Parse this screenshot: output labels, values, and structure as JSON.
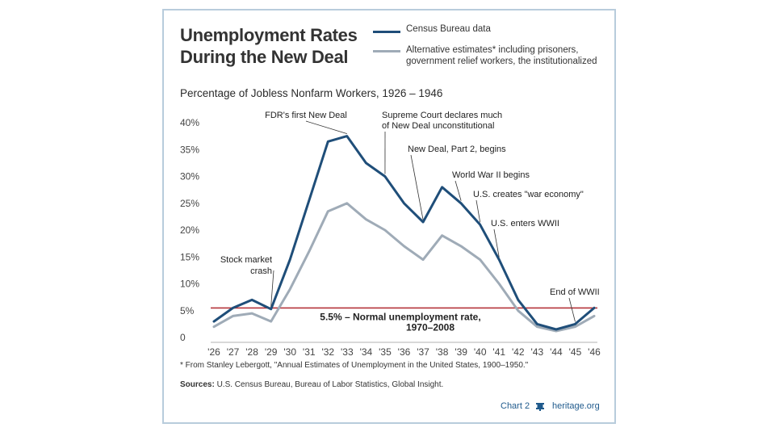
{
  "title_lines": [
    "Unemployment Rates",
    "During the New Deal"
  ],
  "legend": {
    "census": "Census Bureau data",
    "alternative": "Alternative estimates* including prisoners, government relief workers, the institutionalized"
  },
  "subtitle": "Percentage of Jobless Nonfarm Workers, 1926 – 1946",
  "footnote": "* From Stanley Lebergott, \"Annual Estimates of Unemployment in the United States, 1900–1950.\"",
  "sources_label": "Sources:",
  "sources_text": "U.S. Census Bureau, Bureau of Labor Statistics, Global Insight.",
  "chart_number": "Chart 2",
  "org": "heritage.org",
  "colors": {
    "census": "#1f4e79",
    "alternative": "#9fabb7",
    "normal_line": "#b5343a",
    "frame": "#b8ccdc"
  },
  "chart_data": {
    "type": "line",
    "title": "Percentage of Jobless Nonfarm Workers, 1926 – 1946",
    "x": [
      "'26",
      "'27",
      "'28",
      "'29",
      "'30",
      "'31",
      "'32",
      "'33",
      "'34",
      "'35",
      "'36",
      "'37",
      "'38",
      "'39",
      "'40",
      "'41",
      "'42",
      "'43",
      "'44",
      "'45",
      "'46"
    ],
    "y_ticks": [
      "0",
      "5%",
      "10%",
      "15%",
      "20%",
      "25%",
      "30%",
      "35%",
      "40%"
    ],
    "ylim": [
      0,
      40
    ],
    "series": [
      {
        "name": "Census Bureau data",
        "values": [
          3,
          5.5,
          7,
          5.3,
          14.5,
          25.5,
          36.5,
          37.5,
          32.5,
          30,
          25,
          21.5,
          28,
          25,
          21,
          14.5,
          7,
          2.5,
          1.5,
          2.5,
          5.5
        ]
      },
      {
        "name": "Alternative estimates",
        "values": [
          2,
          4,
          4.5,
          3,
          9,
          16,
          23.5,
          25,
          22,
          20,
          17,
          14.5,
          19,
          17,
          14.5,
          10,
          5,
          2,
          1.2,
          2,
          4
        ]
      }
    ],
    "reference_line": {
      "value": 5.5,
      "label_lines": [
        "5.5% – Normal unemployment rate,",
        "1970–2008"
      ]
    },
    "annotations": [
      {
        "lines": [
          "Stock market",
          "crash"
        ],
        "year_index": 3
      },
      {
        "lines": [
          "FDR's first New Deal"
        ],
        "year_index": 7
      },
      {
        "lines": [
          "Supreme Court declares much",
          "of New Deal unconstitutional"
        ],
        "year_index": 9
      },
      {
        "lines": [
          "New Deal, Part 2, begins"
        ],
        "year_index": 11
      },
      {
        "lines": [
          "World War II begins"
        ],
        "year_index": 13
      },
      {
        "lines": [
          "U.S. creates \"war economy\""
        ],
        "year_index": 14
      },
      {
        "lines": [
          "U.S. enters WWII"
        ],
        "year_index": 15
      },
      {
        "lines": [
          "End of WWII"
        ],
        "year_index": 19
      }
    ]
  }
}
